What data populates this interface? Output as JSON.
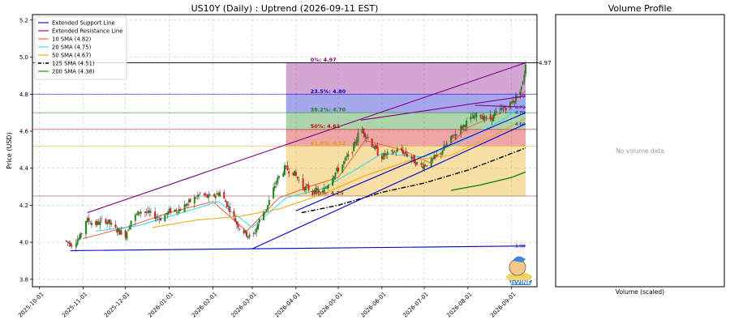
{
  "chart_data": [
    {
      "type": "candlestick",
      "title": "US10Y (Daily) : Uptrend (2026-09-11 EST)",
      "ylabel": "Price (USD)",
      "xlabel": "",
      "ylim": [
        3.76,
        5.23
      ],
      "xlim": [
        "2025-09-26",
        "2026-09-19"
      ],
      "y_ticks": [
        3.8,
        4.0,
        4.2,
        4.4,
        4.6,
        4.8,
        5.0,
        5.2
      ],
      "x_ticks": [
        "2025-10-01",
        "2025-11-01",
        "2025-12-01",
        "2026-01-01",
        "2026-02-01",
        "2026-03-01",
        "2026-04-01",
        "2026-05-01",
        "2026-06-01",
        "2026-07-01",
        "2026-08-01",
        "2026-09-01"
      ],
      "grid": true,
      "legend_position": "top-left",
      "legend": [
        {
          "label": "Extended Support Line",
          "color": "#0000cc",
          "style": "solid"
        },
        {
          "label": "Extended Resistance Line",
          "color": "#800080",
          "style": "solid"
        },
        {
          "label": "10 SMA (4.82)",
          "color": "#e8623a",
          "style": "solid"
        },
        {
          "label": "20 SMA (4.75)",
          "color": "#28d8e8",
          "style": "solid"
        },
        {
          "label": "50 SMA (4.67)",
          "color": "#f5a500",
          "style": "solid"
        },
        {
          "label": "125 SMA (4.51)",
          "color": "#000000",
          "style": "dashdot"
        },
        {
          "label": "200 SMA (4.38)",
          "color": "#118811",
          "style": "solid"
        }
      ],
      "price_path": [
        [
          "2025-10-18",
          4.01
        ],
        [
          "2025-10-24",
          3.99
        ],
        [
          "2025-10-30",
          4.03
        ],
        [
          "2025-11-03",
          4.12
        ],
        [
          "2025-11-10",
          4.1
        ],
        [
          "2025-11-17",
          4.12
        ],
        [
          "2025-11-24",
          4.07
        ],
        [
          "2025-12-01",
          4.04
        ],
        [
          "2025-12-05",
          4.12
        ],
        [
          "2025-12-12",
          4.17
        ],
        [
          "2025-12-19",
          4.15
        ],
        [
          "2025-12-26",
          4.13
        ],
        [
          "2026-01-02",
          4.17
        ],
        [
          "2026-01-09",
          4.18
        ],
        [
          "2026-01-16",
          4.22
        ],
        [
          "2026-01-23",
          4.26
        ],
        [
          "2026-01-30",
          4.24
        ],
        [
          "2026-02-06",
          4.27
        ],
        [
          "2026-02-13",
          4.18
        ],
        [
          "2026-02-18",
          4.1
        ],
        [
          "2026-02-24",
          4.05
        ],
        [
          "2026-03-01",
          4.02
        ],
        [
          "2026-03-06",
          4.12
        ],
        [
          "2026-03-12",
          4.2
        ],
        [
          "2026-03-18",
          4.33
        ],
        [
          "2026-03-24",
          4.4
        ],
        [
          "2026-03-30",
          4.38
        ],
        [
          "2026-04-06",
          4.3
        ],
        [
          "2026-04-13",
          4.28
        ],
        [
          "2026-04-20",
          4.27
        ],
        [
          "2026-04-27",
          4.36
        ],
        [
          "2026-05-04",
          4.42
        ],
        [
          "2026-05-11",
          4.5
        ],
        [
          "2026-05-17",
          4.62
        ],
        [
          "2026-05-24",
          4.54
        ],
        [
          "2026-05-31",
          4.46
        ],
        [
          "2026-06-07",
          4.48
        ],
        [
          "2026-06-14",
          4.5
        ],
        [
          "2026-06-21",
          4.46
        ],
        [
          "2026-06-28",
          4.41
        ],
        [
          "2026-07-05",
          4.43
        ],
        [
          "2026-07-12",
          4.48
        ],
        [
          "2026-07-19",
          4.55
        ],
        [
          "2026-07-26",
          4.61
        ],
        [
          "2026-08-02",
          4.66
        ],
        [
          "2026-08-09",
          4.69
        ],
        [
          "2026-08-16",
          4.66
        ],
        [
          "2026-08-23",
          4.71
        ],
        [
          "2026-08-30",
          4.74
        ],
        [
          "2026-09-04",
          4.78
        ],
        [
          "2026-09-09",
          4.86
        ],
        [
          "2026-09-11",
          4.97
        ]
      ],
      "sma": {
        "sma10": [
          [
            "2025-11-01",
            4.02
          ],
          [
            "2025-12-01",
            4.08
          ],
          [
            "2026-01-01",
            4.16
          ],
          [
            "2026-02-01",
            4.22
          ],
          [
            "2026-02-25",
            4.06
          ],
          [
            "2026-03-20",
            4.24
          ],
          [
            "2026-04-10",
            4.3
          ],
          [
            "2026-05-01",
            4.35
          ],
          [
            "2026-05-20",
            4.55
          ],
          [
            "2026-06-15",
            4.5
          ],
          [
            "2026-07-05",
            4.43
          ],
          [
            "2026-08-01",
            4.62
          ],
          [
            "2026-08-25",
            4.7
          ],
          [
            "2026-09-11",
            4.82
          ]
        ],
        "sma20": [
          [
            "2025-11-10",
            4.06
          ],
          [
            "2025-12-10",
            4.09
          ],
          [
            "2026-01-10",
            4.16
          ],
          [
            "2026-02-05",
            4.22
          ],
          [
            "2026-03-01",
            4.08
          ],
          [
            "2026-03-25",
            4.24
          ],
          [
            "2026-04-20",
            4.29
          ],
          [
            "2026-05-15",
            4.4
          ],
          [
            "2026-06-01",
            4.48
          ],
          [
            "2026-07-01",
            4.46
          ],
          [
            "2026-08-01",
            4.56
          ],
          [
            "2026-08-25",
            4.66
          ],
          [
            "2026-09-11",
            4.75
          ]
        ],
        "sma50": [
          [
            "2025-12-20",
            4.08
          ],
          [
            "2026-01-20",
            4.12
          ],
          [
            "2026-02-20",
            4.14
          ],
          [
            "2026-03-20",
            4.18
          ],
          [
            "2026-04-20",
            4.26
          ],
          [
            "2026-05-20",
            4.36
          ],
          [
            "2026-06-20",
            4.44
          ],
          [
            "2026-07-20",
            4.47
          ],
          [
            "2026-08-20",
            4.58
          ],
          [
            "2026-09-11",
            4.67
          ]
        ],
        "sma125": [
          [
            "2026-04-05",
            4.16
          ],
          [
            "2026-05-01",
            4.2
          ],
          [
            "2026-06-01",
            4.27
          ],
          [
            "2026-07-01",
            4.32
          ],
          [
            "2026-08-01",
            4.39
          ],
          [
            "2026-09-01",
            4.48
          ],
          [
            "2026-09-11",
            4.51
          ]
        ],
        "sma200": [
          [
            "2026-07-20",
            4.28
          ],
          [
            "2026-08-10",
            4.31
          ],
          [
            "2026-09-01",
            4.35
          ],
          [
            "2026-09-11",
            4.38
          ]
        ]
      },
      "trendlines": [
        {
          "name": "Extended Support Line",
          "color": "#0000cc",
          "points": [
            [
              "2025-10-23",
              3.955
            ],
            [
              "2026-09-11",
              3.98
            ]
          ]
        },
        {
          "name": "Extended Support Line",
          "color": "#0000cc",
          "points": [
            [
              "2026-03-01",
              3.965
            ],
            [
              "2026-09-11",
              4.64
            ]
          ]
        },
        {
          "name": "Extended Support Line",
          "color": "#0000cc",
          "points": [
            [
              "2026-04-01",
              4.17
            ],
            [
              "2026-09-11",
              4.7
            ]
          ]
        },
        {
          "name": "Extended Resistance Line",
          "color": "#800080",
          "points": [
            [
              "2025-11-04",
              4.16
            ],
            [
              "2026-09-11",
              4.97
            ]
          ]
        },
        {
          "name": "Extended Resistance Line",
          "color": "#800080",
          "points": [
            [
              "2026-05-17",
              4.66
            ],
            [
              "2026-09-11",
              4.79
            ]
          ]
        },
        {
          "name": "Extended Resistance Line",
          "color": "#800080",
          "points": [
            [
              "2026-08-06",
              4.74
            ],
            [
              "2026-09-11",
              4.73
            ]
          ]
        }
      ],
      "fibonacci": {
        "x_range": [
          "2026-03-25",
          "2026-09-11"
        ],
        "levels": [
          {
            "label": "0%: 4.97",
            "value": 4.97,
            "color": "#800080"
          },
          {
            "label": "23.5%: 4.80",
            "value": 4.8,
            "color": "#0000cc"
          },
          {
            "label": "38.2%: 4.70",
            "value": 4.7,
            "color": "#118811"
          },
          {
            "label": "50%: 4.61",
            "value": 4.61,
            "color": "#cc0000"
          },
          {
            "label": "61.8%: 4.52",
            "value": 4.52,
            "color": "#e8a200"
          },
          {
            "label": "100%: 4.25",
            "value": 4.25,
            "color": "#8b3a2a"
          }
        ]
      },
      "price_marker": {
        "label": "4.97",
        "value": 4.97
      },
      "right_labels": [
        {
          "label": "4.79",
          "value": 4.79,
          "color": "#800080"
        },
        {
          "label": "4.73",
          "value": 4.73,
          "color": "#800080"
        },
        {
          "label": "4.70",
          "value": 4.7,
          "color": "#0000cc"
        },
        {
          "label": "4.64",
          "value": 4.64,
          "color": "#0000cc"
        },
        {
          "label": "3.98",
          "value": 3.98,
          "color": "#0000cc"
        }
      ]
    },
    {
      "type": "bar",
      "title": "Volume Profile",
      "xlabel": "Volume (scaled)",
      "message": "No volume data",
      "values": []
    }
  ],
  "colors": {
    "up": "#1f8a1f",
    "down": "#d62020",
    "wick": "#222222"
  },
  "logo": {
    "text": "IsVINE",
    "icon": "mascot-icon"
  }
}
